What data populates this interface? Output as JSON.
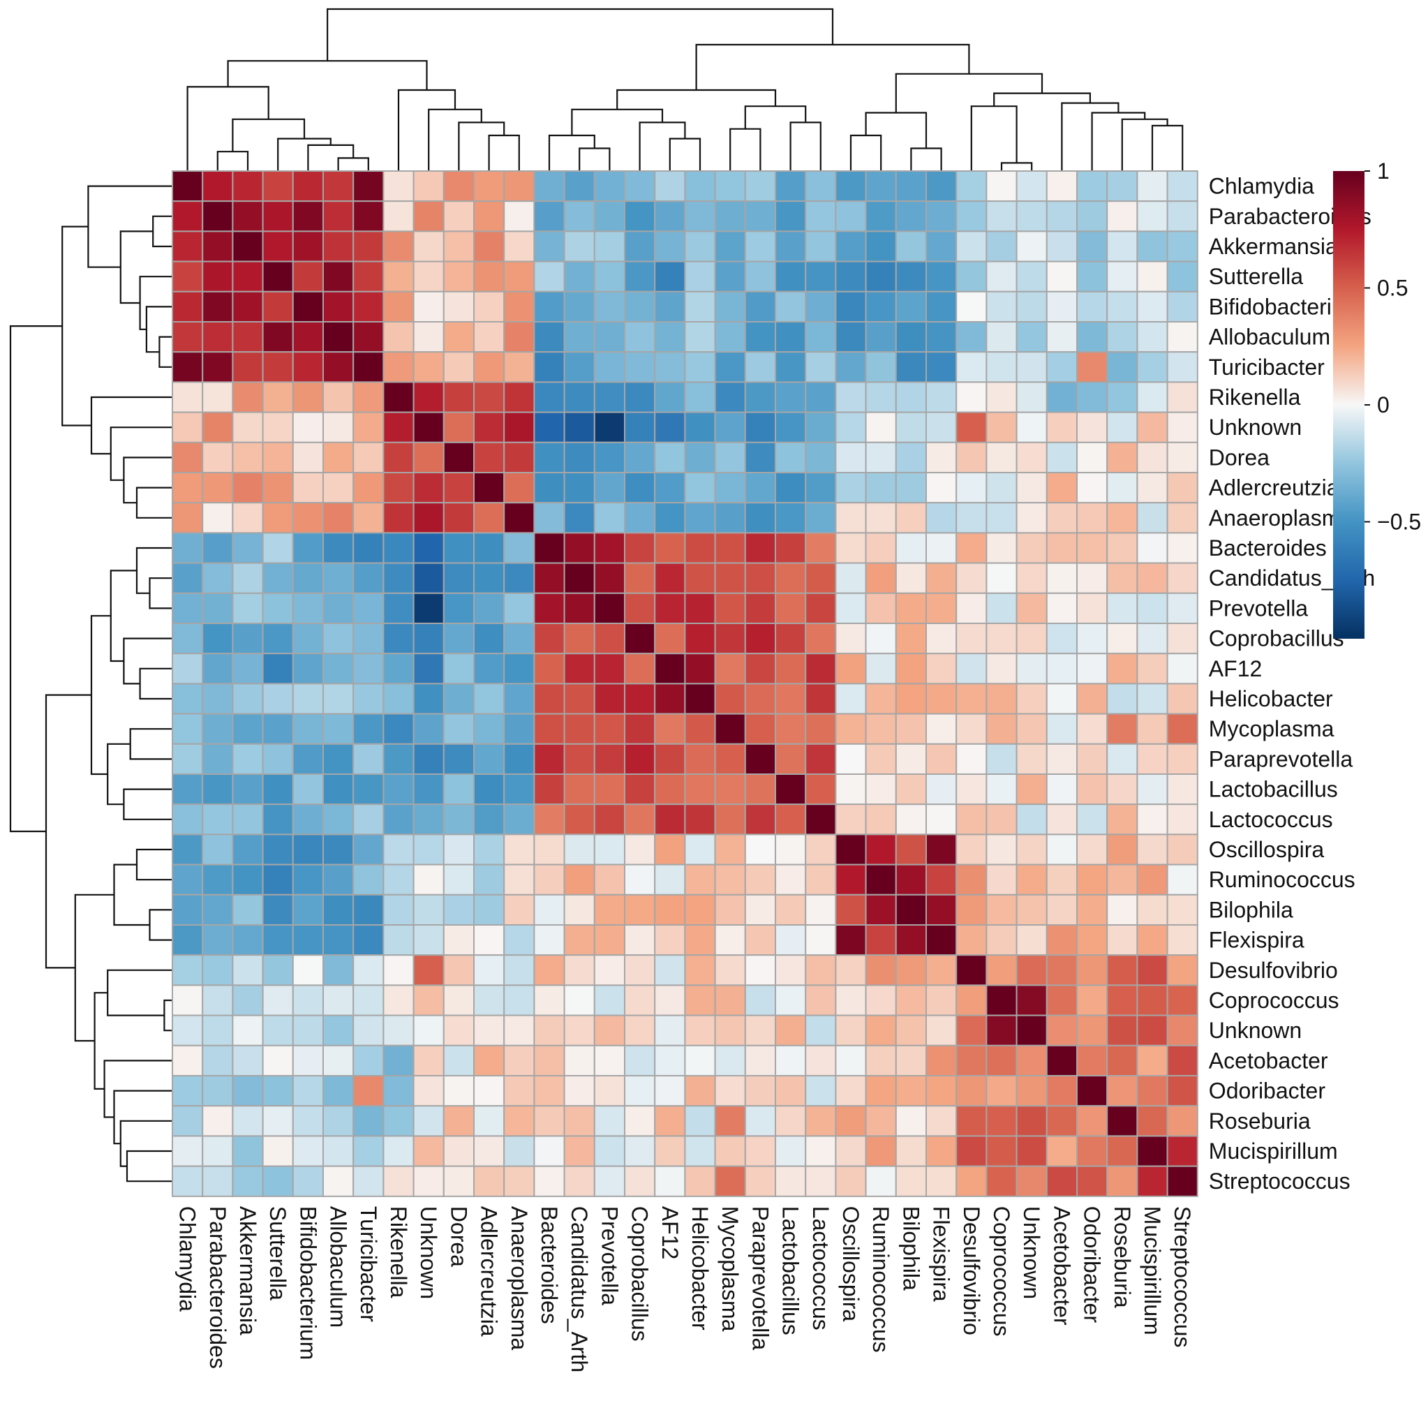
{
  "chart_data": {
    "type": "heatmap",
    "title": "",
    "labels": [
      "Chlamydia",
      "Parabacteroides",
      "Akkermansia",
      "Sutterella",
      "Bifidobacterium",
      "Allobaculum",
      "Turicibacter",
      "Rikenella",
      "Unknown",
      "Dorea",
      "Adlercreutzia",
      "Anaeroplasma",
      "Bacteroides",
      "Candidatus_Arth",
      "Prevotella",
      "Coprobacillus",
      "AF12",
      "Helicobacter",
      "Mycoplasma",
      "Paraprevotella",
      "Lactobacillus",
      "Lactococcus",
      "Oscillospira",
      "Ruminococcus",
      "Bilophila",
      "Flexispira",
      "Desulfovibrio",
      "Coprococcus",
      "Unknown",
      "Acetobacter",
      "Odoribacter",
      "Roseburia",
      "Mucispirillum",
      "Streptococcus"
    ],
    "clusters": [
      [
        0,
        6
      ],
      [
        7,
        11
      ],
      [
        12,
        21
      ],
      [
        22,
        25
      ],
      [
        26,
        33
      ]
    ],
    "block_mean": [
      [
        0.8,
        0.2,
        -0.35,
        -0.4,
        -0.15
      ],
      [
        0.2,
        0.6,
        -0.4,
        -0.05,
        0.05
      ],
      [
        -0.35,
        -0.4,
        0.55,
        0.1,
        0.05
      ],
      [
        -0.4,
        -0.05,
        0.1,
        0.75,
        0.15
      ],
      [
        -0.15,
        0.05,
        0.05,
        0.15,
        0.4
      ]
    ],
    "overrides": [
      [
        0,
        1,
        0.75
      ],
      [
        0,
        2,
        0.7
      ],
      [
        0,
        3,
        0.6
      ],
      [
        1,
        2,
        0.85
      ],
      [
        2,
        3,
        0.75
      ],
      [
        4,
        5,
        0.8
      ],
      [
        5,
        6,
        0.85
      ],
      [
        4,
        6,
        0.7
      ],
      [
        8,
        9,
        0.45
      ],
      [
        9,
        10,
        0.6
      ],
      [
        10,
        11,
        0.45
      ],
      [
        8,
        26,
        0.5
      ],
      [
        8,
        12,
        -0.75
      ],
      [
        8,
        13,
        -0.8
      ],
      [
        8,
        14,
        -0.95
      ],
      [
        8,
        15,
        -0.6
      ],
      [
        8,
        16,
        -0.65
      ],
      [
        8,
        19,
        -0.6
      ],
      [
        12,
        13,
        0.85
      ],
      [
        12,
        14,
        0.8
      ],
      [
        13,
        14,
        0.85
      ],
      [
        16,
        17,
        0.85
      ],
      [
        18,
        19,
        0.5
      ],
      [
        20,
        21,
        0.5
      ],
      [
        22,
        23,
        0.75
      ],
      [
        24,
        25,
        0.85
      ],
      [
        22,
        24,
        0.55
      ],
      [
        23,
        25,
        0.6
      ],
      [
        27,
        28,
        0.9
      ],
      [
        32,
        33,
        0.7
      ],
      [
        18,
        33,
        0.45
      ],
      [
        18,
        31,
        0.4
      ],
      [
        3,
        22,
        -0.55
      ],
      [
        3,
        23,
        -0.6
      ],
      [
        2,
        23,
        -0.5
      ],
      [
        3,
        16,
        -0.6
      ],
      [
        6,
        12,
        -0.6
      ],
      [
        5,
        12,
        -0.55
      ],
      [
        7,
        29,
        -0.35
      ],
      [
        7,
        30,
        -0.3
      ],
      [
        7,
        31,
        -0.25
      ],
      [
        6,
        30,
        0.35
      ]
    ],
    "colorbar": {
      "min": -1,
      "max": 1,
      "ticks": [
        "1",
        "0.5",
        "0",
        "−0.5"
      ],
      "tick_values": [
        1,
        0.5,
        0,
        -0.5
      ]
    },
    "colors": {
      "low": "#053061",
      "mid_low": "#4393c3",
      "mid": "#f7f7f7",
      "mid_high": "#d6604d",
      "high": "#67001f",
      "cell_border": "#a6a6a6",
      "dendrogram": "#111111"
    }
  }
}
